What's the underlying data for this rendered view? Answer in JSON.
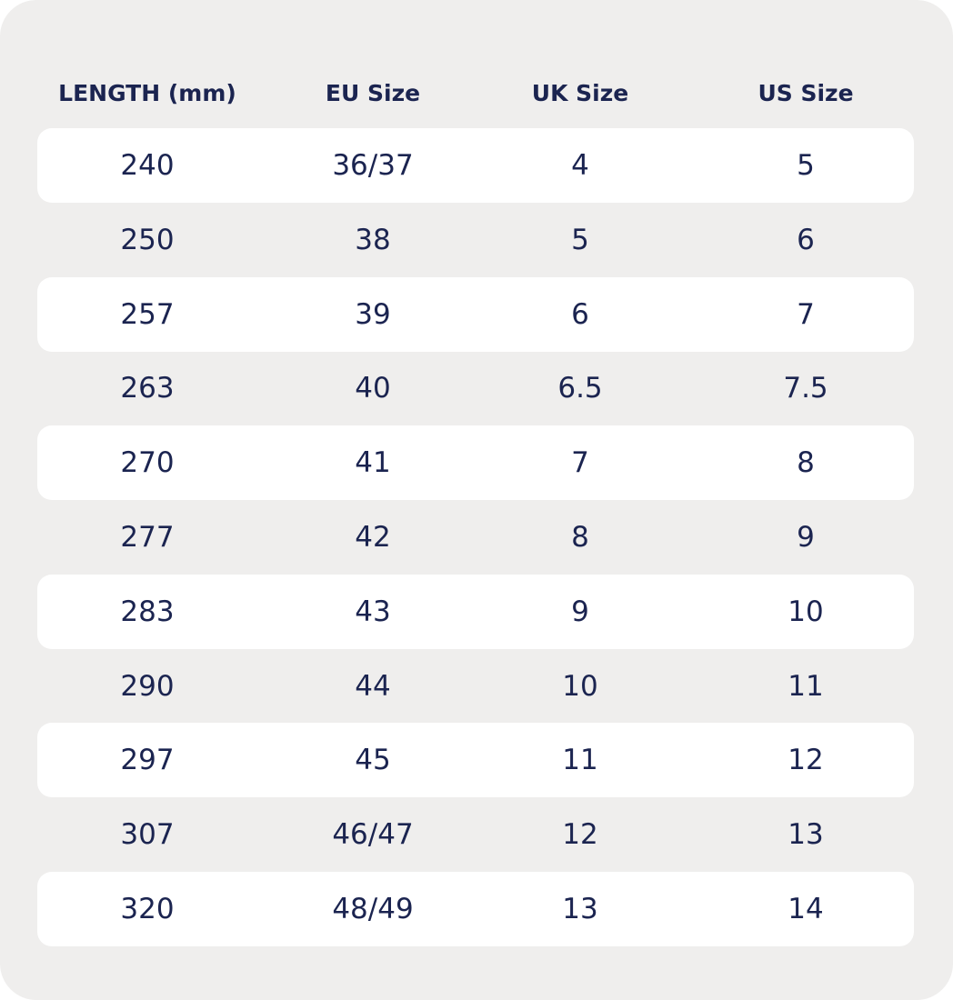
{
  "table": {
    "header": [
      "LENGTH (mm)",
      "EU Size",
      "UK Size",
      "US Size"
    ],
    "rows": [
      [
        "240",
        "36/37",
        "4",
        "5"
      ],
      [
        "250",
        "38",
        "5",
        "6"
      ],
      [
        "257",
        "39",
        "6",
        "7"
      ],
      [
        "263",
        "40",
        "6.5",
        "7.5"
      ],
      [
        "270",
        "41",
        "7",
        "8"
      ],
      [
        "277",
        "42",
        "8",
        "9"
      ],
      [
        "283",
        "43",
        "9",
        "10"
      ],
      [
        "290",
        "44",
        "10",
        "11"
      ],
      [
        "297",
        "45",
        "11",
        "12"
      ],
      [
        "307",
        "46/47",
        "12",
        "13"
      ],
      [
        "320",
        "48/49",
        "13",
        "14"
      ]
    ]
  }
}
